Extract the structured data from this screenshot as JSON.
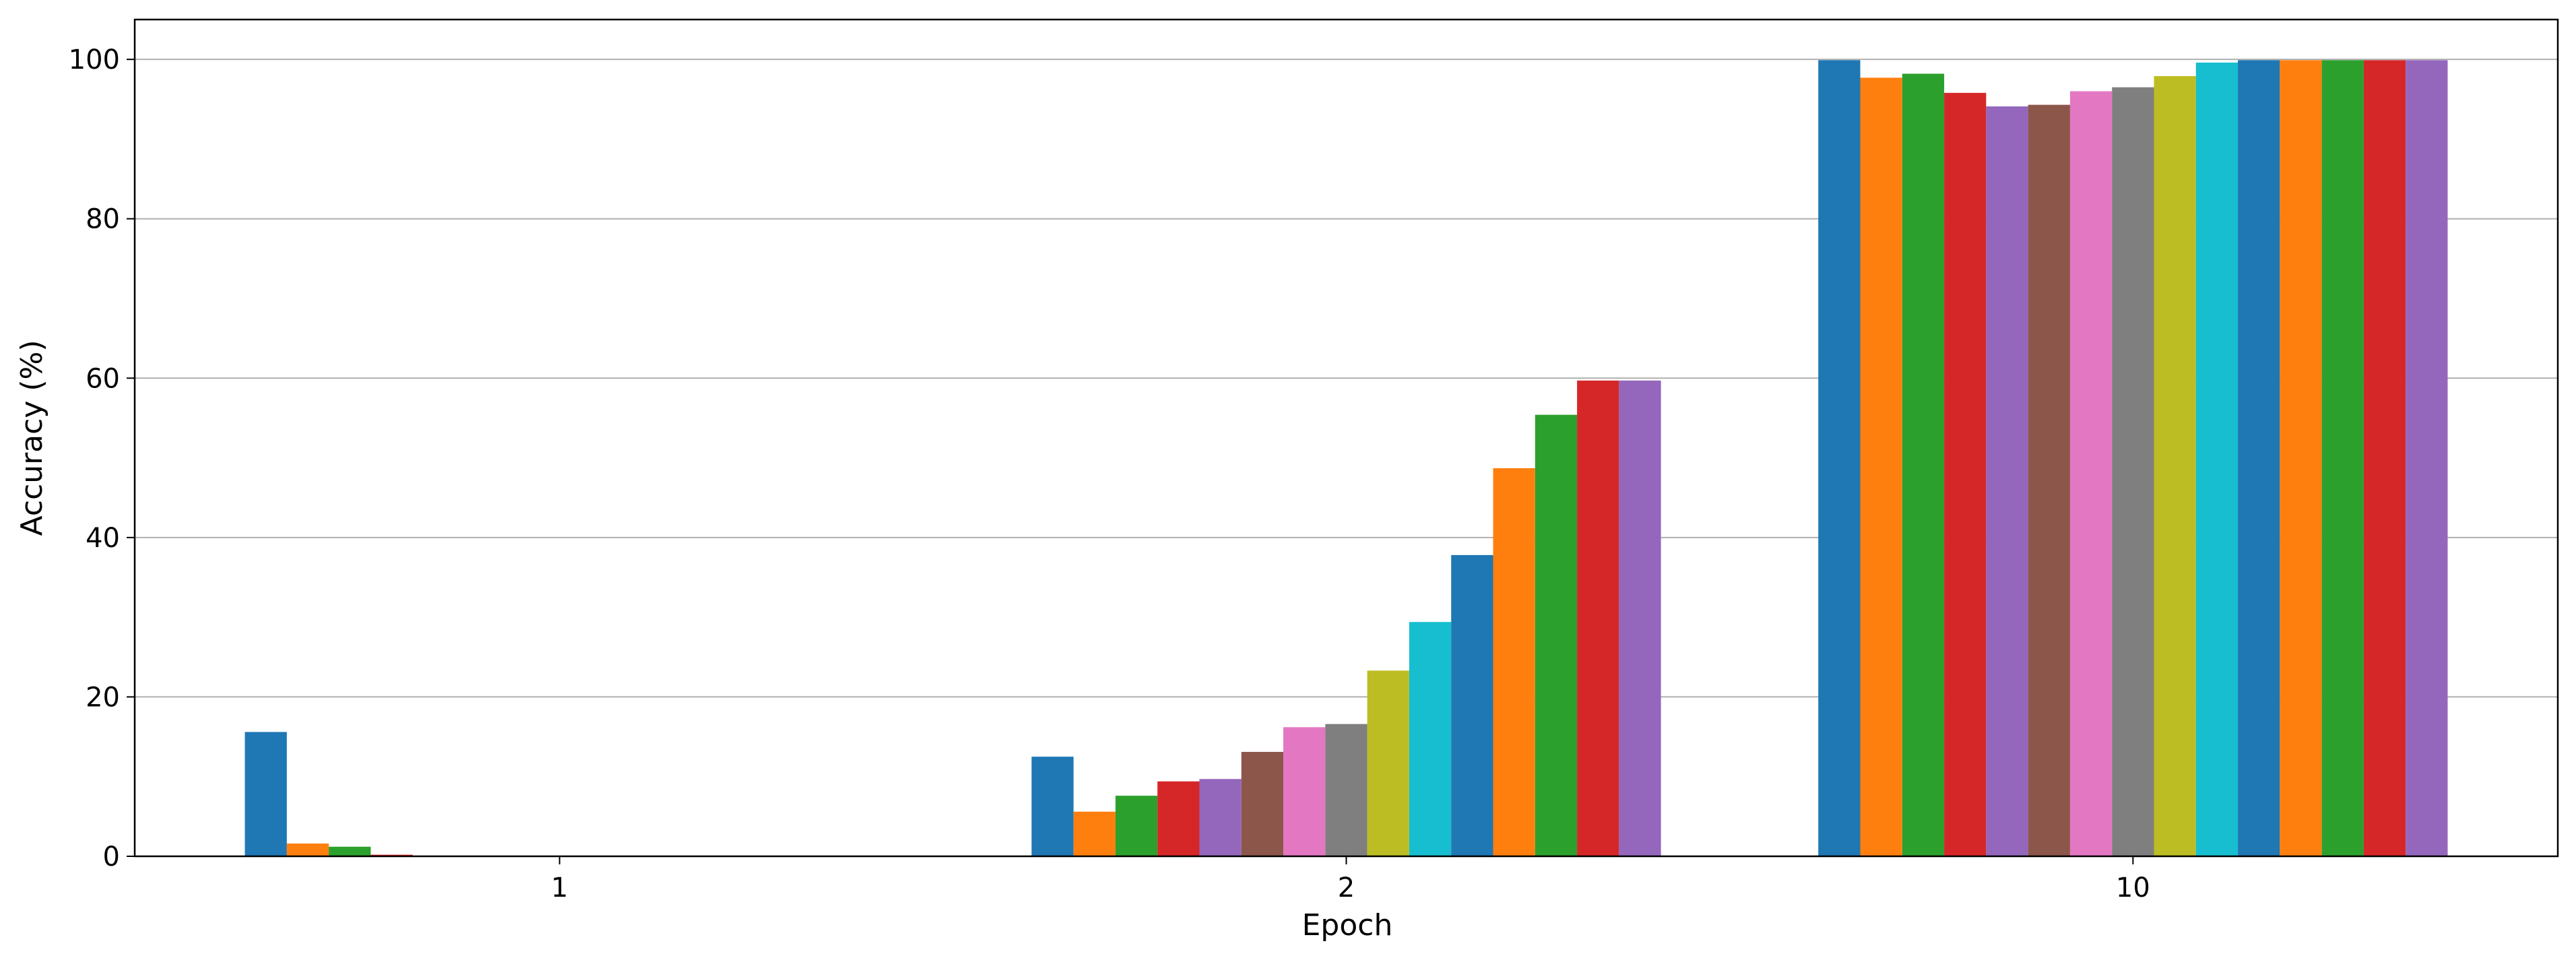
{
  "chart_data": {
    "type": "bar",
    "xlabel": "Epoch",
    "ylabel": "Accuracy (%)",
    "categories": [
      "1",
      "2",
      "10"
    ],
    "ylim": [
      0,
      105
    ],
    "yticks": [
      0,
      20,
      40,
      60,
      80,
      100
    ],
    "grid": "y",
    "series": [
      {
        "color": "#1f77b4",
        "values": [
          15.6,
          12.5,
          99.9
        ]
      },
      {
        "color": "#ff7f0e",
        "values": [
          1.6,
          5.6,
          97.7
        ]
      },
      {
        "color": "#2ca02c",
        "values": [
          1.2,
          7.6,
          98.2
        ]
      },
      {
        "color": "#d62728",
        "values": [
          0.2,
          9.4,
          95.8
        ]
      },
      {
        "color": "#9467bd",
        "values": [
          0,
          9.7,
          94.1
        ]
      },
      {
        "color": "#8c564b",
        "values": [
          0,
          13.1,
          94.3
        ]
      },
      {
        "color": "#e377c2",
        "values": [
          0,
          16.2,
          96.0
        ]
      },
      {
        "color": "#7f7f7f",
        "values": [
          0,
          16.6,
          96.5
        ]
      },
      {
        "color": "#bcbd22",
        "values": [
          0,
          23.3,
          97.9
        ]
      },
      {
        "color": "#17becf",
        "values": [
          0,
          29.4,
          99.6
        ]
      },
      {
        "color": "#1f77b4",
        "values": [
          0,
          37.8,
          99.9
        ]
      },
      {
        "color": "#ff7f0e",
        "values": [
          0,
          48.7,
          99.9
        ]
      },
      {
        "color": "#2ca02c",
        "values": [
          0,
          55.4,
          99.9
        ]
      },
      {
        "color": "#d62728",
        "values": [
          0,
          59.7,
          99.9
        ]
      },
      {
        "color": "#9467bd",
        "values": [
          0,
          59.7,
          99.9
        ]
      }
    ]
  }
}
